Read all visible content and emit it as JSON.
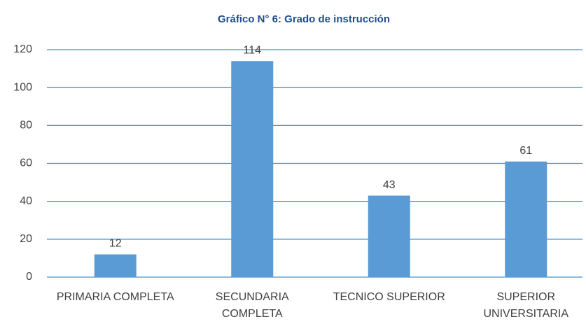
{
  "chart_data": {
    "type": "bar",
    "title": "Gráfico N° 6: Grado de instrucción",
    "categories": [
      "PRIMARIA COMPLETA",
      "SECUNDARIA COMPLETA",
      "TECNICO SUPERIOR",
      "SUPERIOR UNIVERSITARIA"
    ],
    "values": [
      12,
      114,
      43,
      61
    ],
    "color": "#5b9bd5",
    "ylim": [
      0,
      120
    ],
    "yticks": [
      0,
      20,
      40,
      60,
      80,
      100,
      120
    ],
    "grid": true,
    "grid_color": "#4a8fd0"
  }
}
